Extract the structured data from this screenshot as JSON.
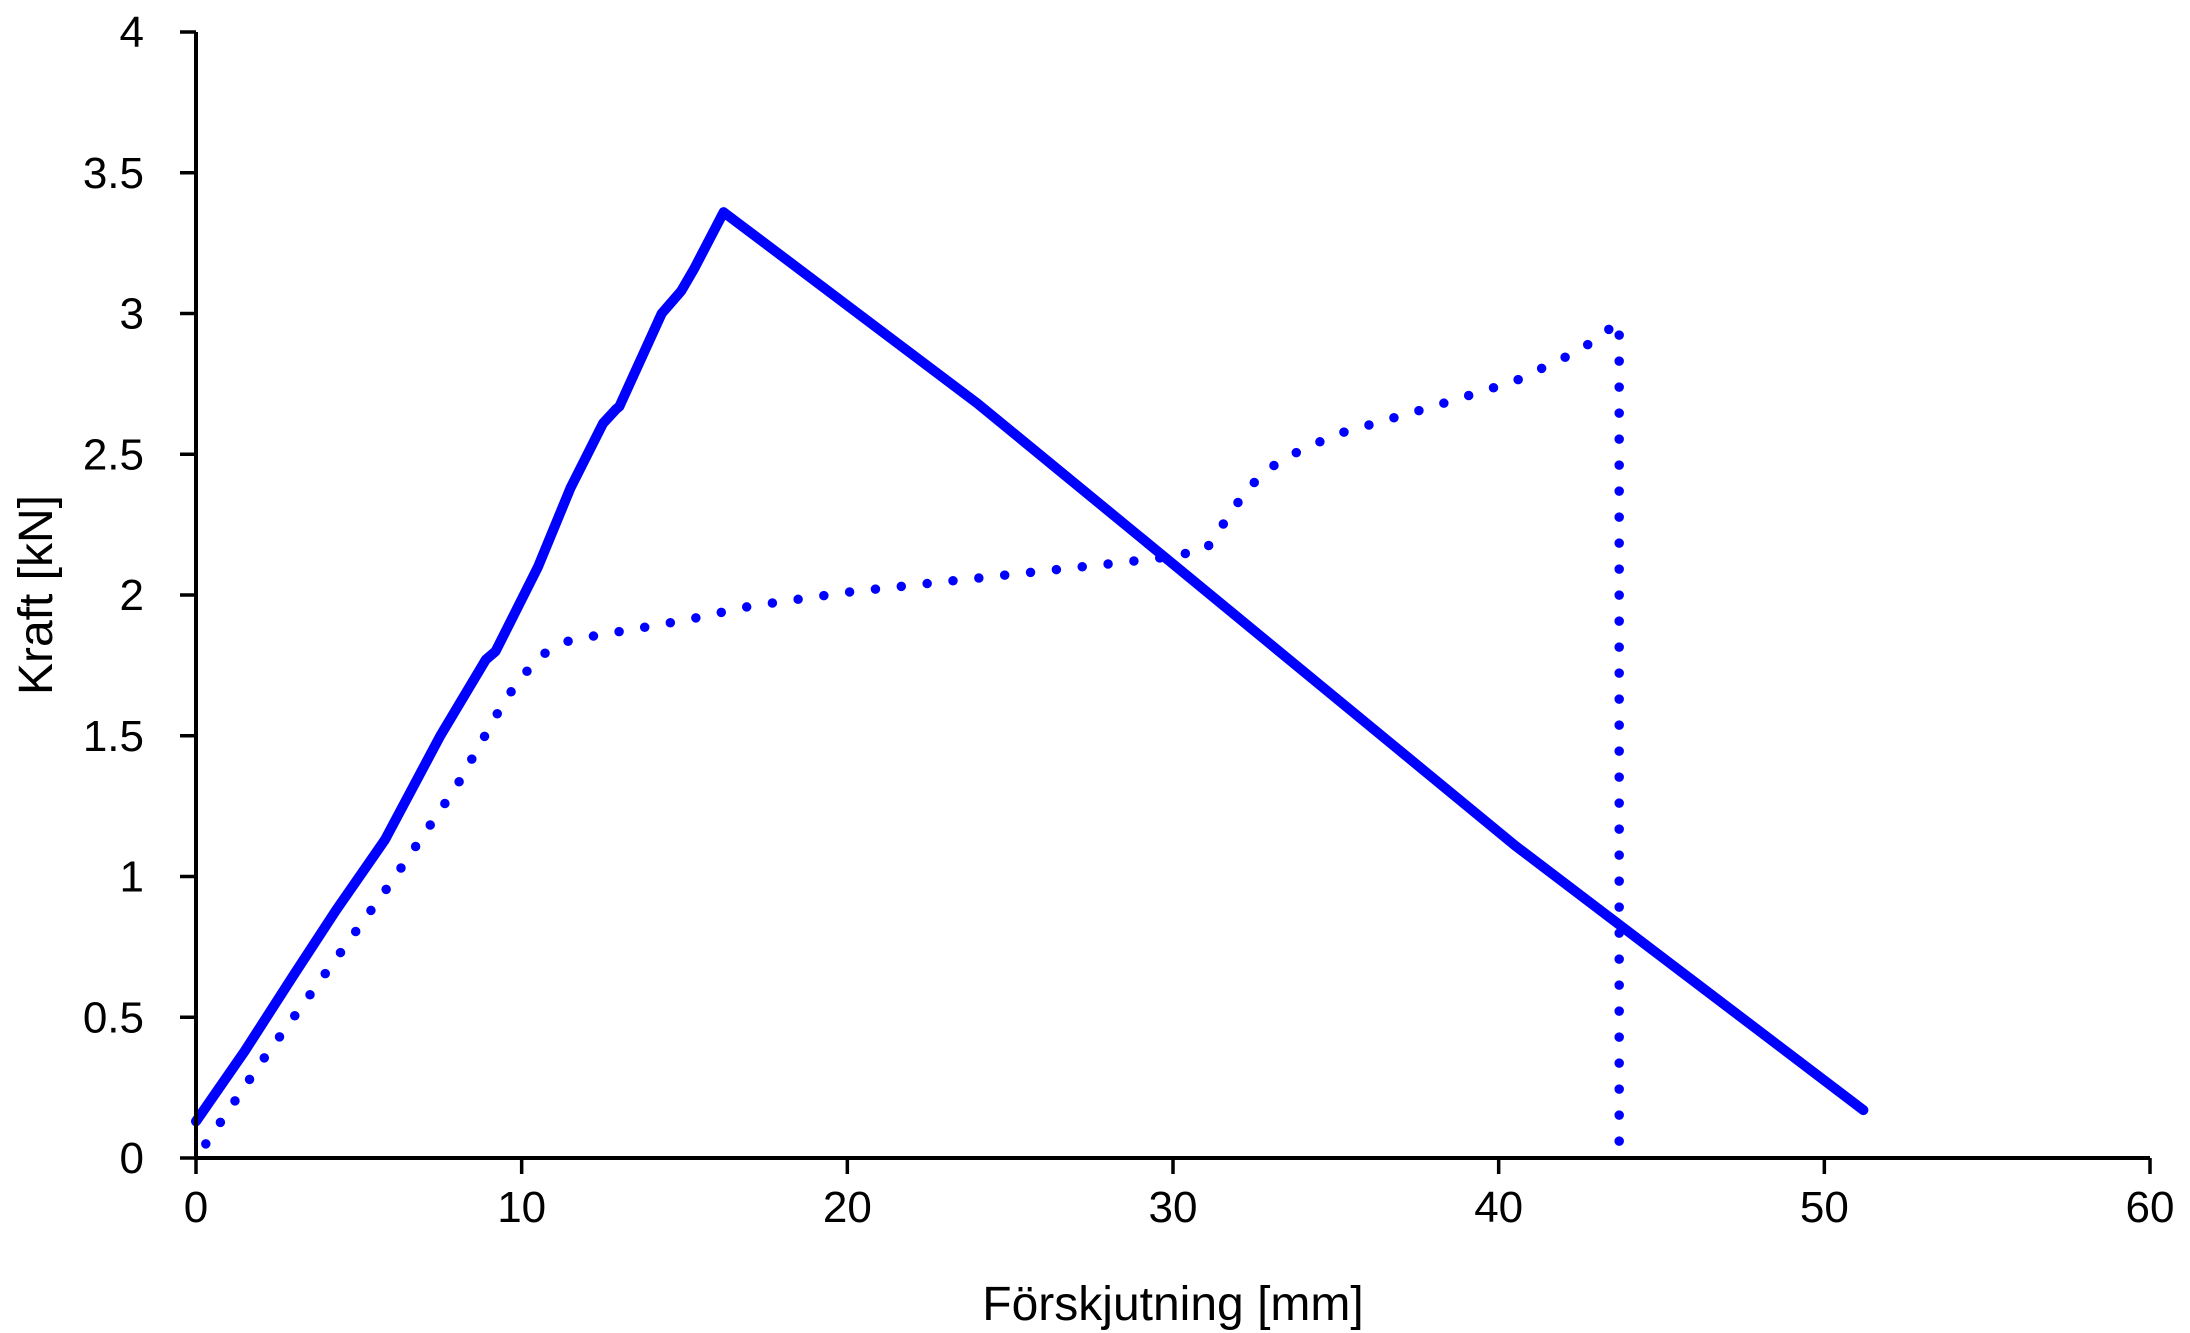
{
  "chart_data": {
    "type": "line",
    "title": "",
    "xlabel": "Förskjutning [mm]",
    "ylabel": "Kraft [kN]",
    "xlim": [
      0,
      60
    ],
    "ylim": [
      0,
      4
    ],
    "xticks": [
      0,
      10,
      20,
      30,
      40,
      50,
      60
    ],
    "yticks": [
      0,
      0.5,
      1,
      1.5,
      2,
      2.5,
      3,
      3.5,
      4
    ],
    "xtick_labels": [
      "0",
      "10",
      "20",
      "30",
      "40",
      "50",
      "60"
    ],
    "ytick_labels": [
      "0",
      "0.5",
      "1",
      "1.5",
      "2",
      "2.5",
      "3",
      "3.5",
      "4"
    ],
    "grid": false,
    "legend": "none",
    "color": "#0000ff",
    "series": [
      {
        "style": "solid",
        "x": [
          0,
          1.5,
          3,
          4.3,
          5.8,
          7.5,
          8.9,
          9.2,
          10.5,
          11.5,
          12.5,
          12.9,
          13.0,
          14.3,
          14.9,
          15.3,
          16.2,
          24.0,
          30.0,
          40.5,
          51.2
        ],
        "y": [
          0.13,
          0.38,
          0.65,
          0.88,
          1.13,
          1.5,
          1.77,
          1.8,
          2.1,
          2.38,
          2.61,
          2.66,
          2.67,
          3.0,
          3.08,
          3.16,
          3.36,
          2.68,
          2.11,
          1.11,
          0.17
        ]
      },
      {
        "style": "dotted",
        "x": [
          0.3,
          2,
          4,
          6,
          8,
          9.5,
          10.5,
          11.5,
          13,
          15,
          17,
          20,
          24,
          28,
          29.5,
          31,
          32.3,
          33.3,
          35,
          38,
          40.5,
          42.5,
          43.7,
          43.7,
          43.7
        ],
        "y": [
          0.05,
          0.34,
          0.66,
          0.98,
          1.32,
          1.63,
          1.78,
          1.84,
          1.87,
          1.91,
          1.96,
          2.01,
          2.06,
          2.11,
          2.13,
          2.16,
          2.38,
          2.48,
          2.57,
          2.67,
          2.76,
          2.87,
          2.97,
          0.82,
          0.05
        ]
      }
    ]
  }
}
